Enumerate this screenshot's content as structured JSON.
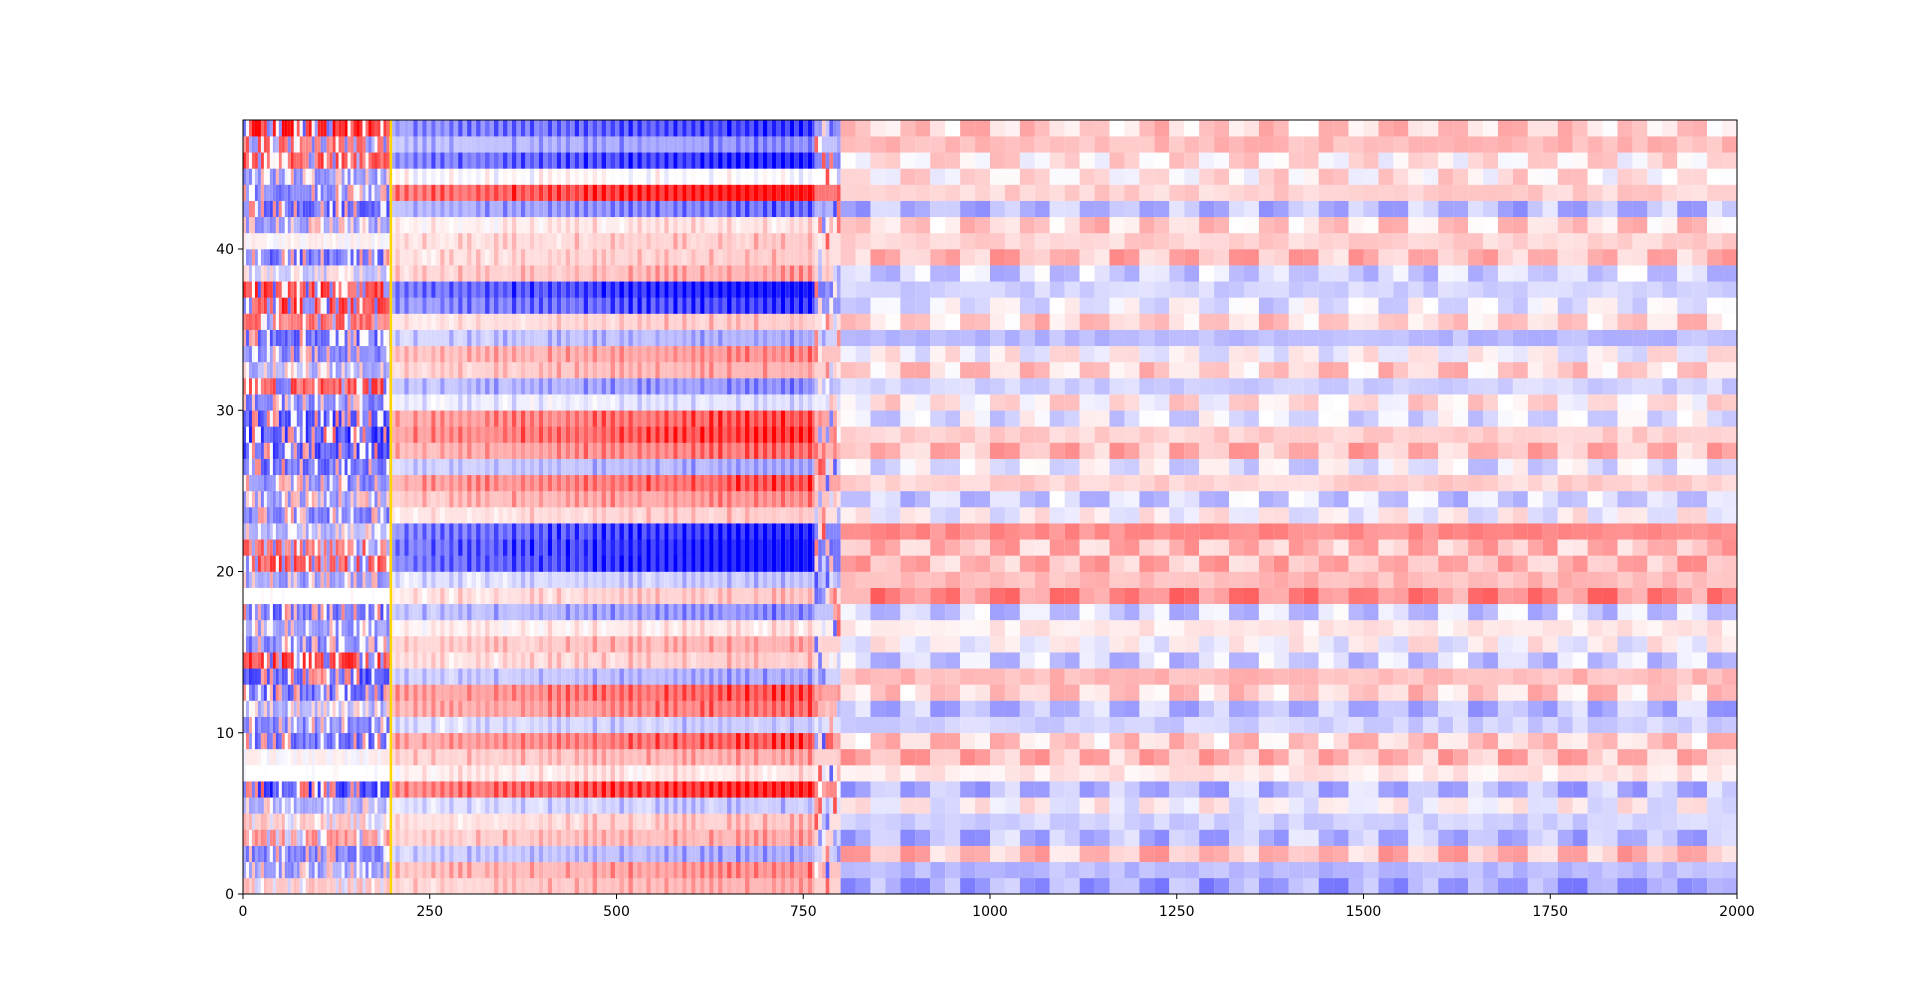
{
  "chart_data": {
    "type": "heatmap",
    "title": "",
    "xlabel": "",
    "ylabel": "",
    "xlim": [
      0,
      2000
    ],
    "ylim": [
      0,
      48
    ],
    "grid": false,
    "legend": "none",
    "colormap": "bwr",
    "colormap_colors": {
      "low": "#0000ff",
      "mid": "#ffffff",
      "high": "#ff0000"
    },
    "value_range": [
      -1,
      1
    ],
    "rows": 48,
    "x_ticks": [
      {
        "value": 0,
        "label": "0"
      },
      {
        "value": 250,
        "label": "250"
      },
      {
        "value": 500,
        "label": "500"
      },
      {
        "value": 750,
        "label": "750"
      },
      {
        "value": 1000,
        "label": "1000"
      },
      {
        "value": 1250,
        "label": "1250"
      },
      {
        "value": 1500,
        "label": "1500"
      },
      {
        "value": 1750,
        "label": "1750"
      },
      {
        "value": 2000,
        "label": "2000"
      }
    ],
    "y_ticks": [
      {
        "value": 0,
        "label": "0"
      },
      {
        "value": 10,
        "label": "10"
      },
      {
        "value": 20,
        "label": "20"
      },
      {
        "value": 30,
        "label": "30"
      },
      {
        "value": 40,
        "label": "40"
      }
    ],
    "marker_line": {
      "x": 198,
      "color": "#ffd700"
    },
    "segments": [
      {
        "x_start": 0,
        "x_end": 198,
        "pattern": "high-frequency noise, saturated"
      },
      {
        "x_start": 198,
        "x_end": 765,
        "pattern": "per-row gradients with periodic stripes"
      },
      {
        "x_start": 765,
        "x_end": 800,
        "pattern": "transition"
      },
      {
        "x_start": 800,
        "x_end": 2000,
        "pattern": "muted alternating blocks"
      }
    ],
    "row_profiles": {
      "segment1": [
        0.3,
        -0.5,
        -0.6,
        0.5,
        0.3,
        -0.4,
        -0.9,
        0.0,
        0.1,
        -0.7,
        -0.6,
        -0.4,
        -0.7,
        -0.8,
        0.9,
        -0.6,
        -0.5,
        -0.7,
        0.0,
        -0.5,
        0.8,
        0.7,
        -0.4,
        -0.6,
        -0.5,
        -0.6,
        -0.7,
        -0.8,
        -0.9,
        -0.8,
        -0.6,
        0.8,
        -0.4,
        -0.6,
        -0.7,
        0.7,
        0.9,
        0.9,
        -0.3,
        -0.7,
        0.1,
        -0.5,
        -0.7,
        -0.6,
        -0.5,
        0.8,
        0.7,
        1.0
      ],
      "segment2": [
        0.3,
        0.4,
        -0.3,
        0.3,
        0.2,
        -0.2,
        0.8,
        0.1,
        0.3,
        0.6,
        -0.2,
        0.5,
        0.6,
        -0.3,
        0.2,
        0.3,
        0.1,
        -0.4,
        0.2,
        -0.2,
        -0.9,
        -0.9,
        -0.8,
        0.2,
        0.4,
        0.6,
        -0.3,
        0.5,
        0.7,
        0.6,
        -0.1,
        -0.4,
        0.3,
        0.4,
        -0.3,
        0.2,
        -0.7,
        -0.9,
        0.3,
        0.2,
        0.2,
        0.1,
        -0.5,
        0.9,
        0.0,
        -0.8,
        -0.4,
        -0.7
      ],
      "segment3": [
        -0.4,
        -0.3,
        0.3,
        -0.3,
        -0.2,
        0.0,
        -0.3,
        0.1,
        0.3,
        0.2,
        -0.2,
        -0.3,
        0.2,
        0.3,
        -0.2,
        0.0,
        0.1,
        -0.2,
        0.5,
        0.3,
        0.3,
        0.3,
        0.5,
        0.0,
        -0.2,
        0.2,
        -0.1,
        0.3,
        0.2,
        -0.1,
        0.1,
        -0.2,
        0.2,
        0.0,
        -0.3,
        0.2,
        -0.1,
        -0.2,
        -0.2,
        0.3,
        0.2,
        0.2,
        -0.3,
        0.2,
        0.1,
        0.1,
        0.3,
        0.2
      ]
    }
  }
}
